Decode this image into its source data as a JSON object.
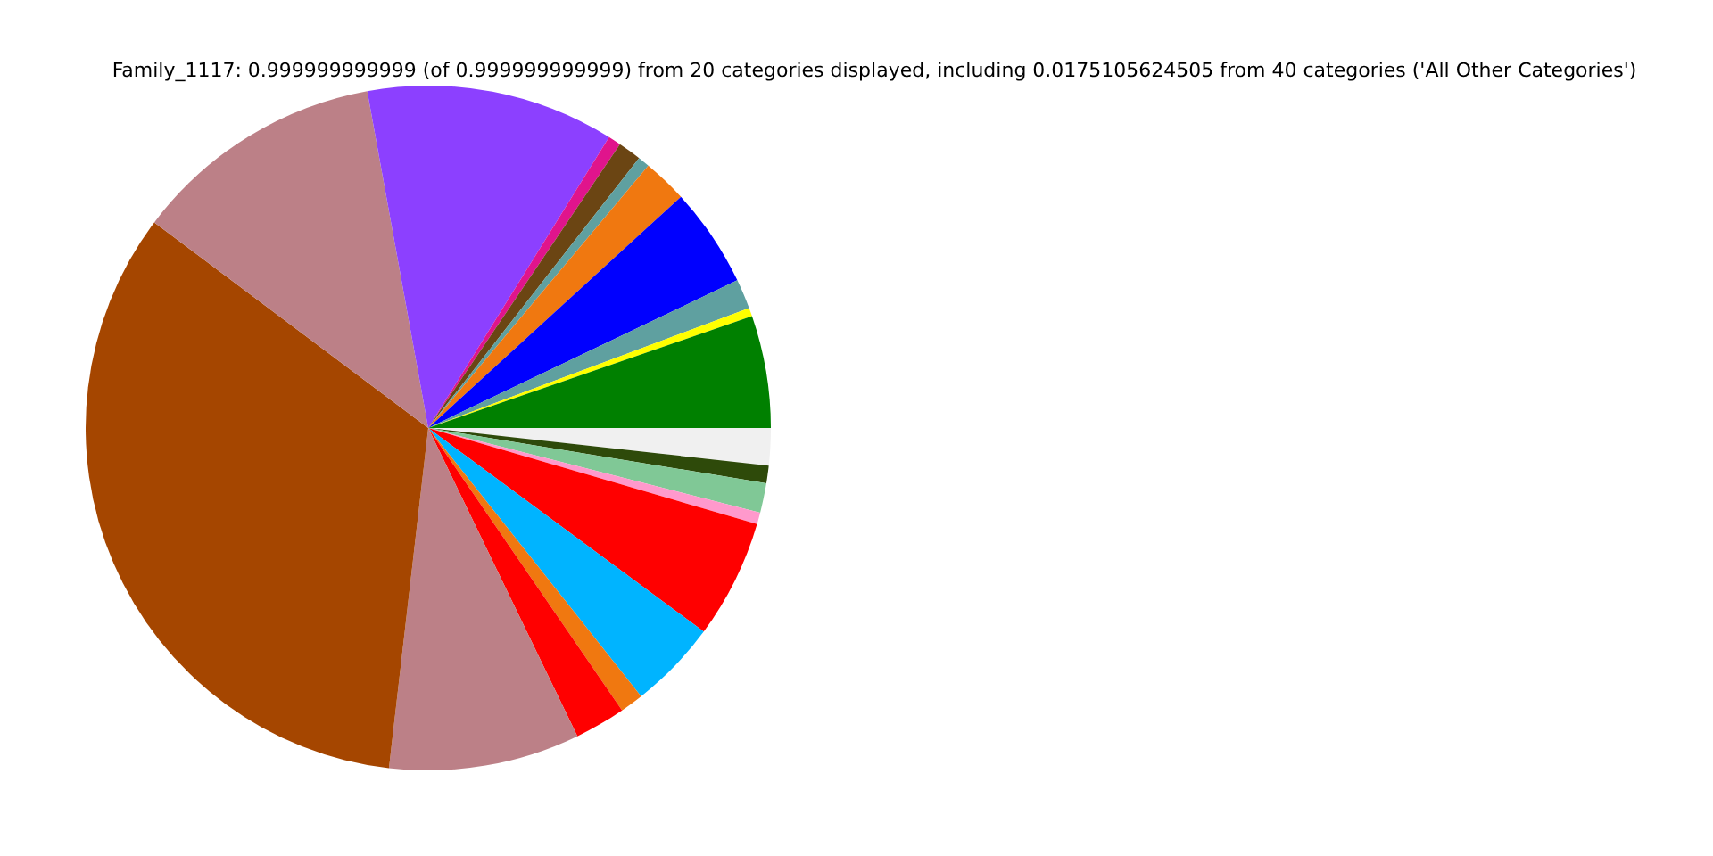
{
  "chart_data": {
    "type": "pie",
    "title": "Family_1117: 0.999999999999 (of 0.999999999999) from 20 categories displayed, including 0.0175105624505 from 40 categories ('All Other Categories')",
    "categories": [
      null,
      null,
      null,
      null,
      null,
      null,
      null,
      null,
      null,
      null,
      null,
      null,
      null,
      null,
      null,
      null,
      null,
      null,
      null,
      null
    ],
    "values": [
      1.75,
      0.83,
      1.4,
      0.55,
      5.6,
      4.2,
      1.1,
      2.4,
      9.0,
      33.42,
      11.9,
      11.7,
      0.6,
      1.1,
      0.55,
      2.1,
      4.7,
      1.4,
      0.4,
      5.3
    ],
    "colors": [
      "#f0f0f0",
      "#2e4a0a",
      "#80c896",
      "#ff99cc",
      "#ff0000",
      "#00b4ff",
      "#f07810",
      "#ff0000",
      "#bc8087",
      "#a54600",
      "#bc8087",
      "#8c40ff",
      "#e0148c",
      "#6b4513",
      "#5fa0a0",
      "#f07810",
      "#0000ff",
      "#5fa0a0",
      "#ffff00",
      "#008000"
    ],
    "legend": false
  }
}
